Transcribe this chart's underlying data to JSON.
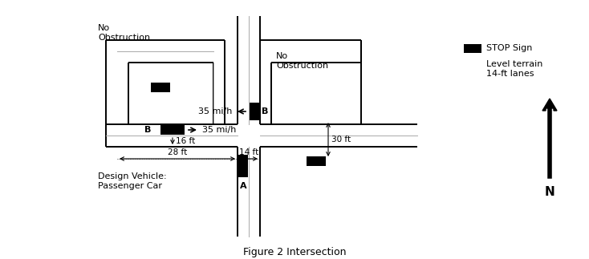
{
  "title": "Figure 2 Intersection",
  "bg": "#ffffff",
  "black": "#000000",
  "gray": "#888888",
  "title_fs": 9,
  "label_fs": 8,
  "dim_fs": 7.5,
  "label_no_obs_left": "No\nObstruction",
  "label_no_obs_right": "No\nObstruction",
  "label_design_vehicle": "Design Vehicle:\nPassenger Car",
  "label_north": "N",
  "speed_left": "35 mi/h",
  "speed_top": "35 mi/h",
  "dim_16ft": "16 ft",
  "dim_28ft": "28 ft",
  "dim_14ft": "14 ft",
  "dim_30ft": "30 ft",
  "label_a": "A",
  "label_b_left": "B",
  "label_b_top": "B",
  "legend_stop_sign": "STOP Sign",
  "legend_terrain": "Level terrain\n14-ft lanes"
}
